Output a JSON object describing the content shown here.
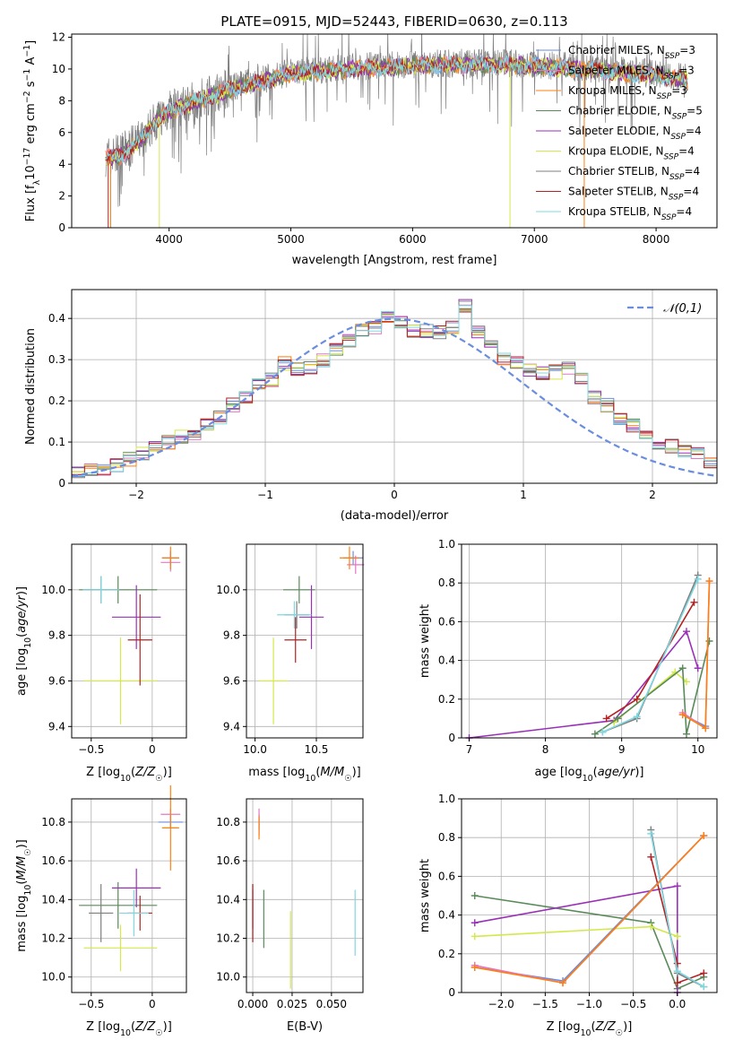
{
  "colors": {
    "chabrier_miles": "#6a8ddf",
    "salpeter_miles": "#e377c2",
    "kroupa_miles": "#ff7f0e",
    "chabrier_elodie": "#5a8a5a",
    "salpeter_elodie": "#9a2fb8",
    "kroupa_elodie": "#d4e84a",
    "chabrier_stelib": "#7f7f7f",
    "salpeter_stelib": "#b22222",
    "kroupa_stelib": "#7fd8e0",
    "gaussian": "#6a8ddf",
    "grid": "#b0b0b0"
  },
  "chart_data": [
    {
      "id": "spectrum",
      "type": "line",
      "title": "PLATE=0915, MJD=52443, FIBERID=0630, z=0.113",
      "xlabel": "wavelength [Angstrom, rest frame]",
      "ylabel": "Flux [f_λ10^-17 erg cm^-2 s^-1 A^-1]",
      "xlim": [
        3200,
        8500
      ],
      "ylim": [
        0,
        12.2
      ],
      "xticks": [
        4000,
        5000,
        6000,
        7000,
        8000
      ],
      "yticks": [
        0,
        2,
        4,
        6,
        8,
        10,
        12
      ],
      "grid": false,
      "legend_position": "right",
      "legend": [
        {
          "main": "Chabrier MILES, N",
          "sub": "SSP",
          "tail": "=3",
          "color_key": "chabrier_miles"
        },
        {
          "main": "Salpeter MILES, N",
          "sub": "SSP",
          "tail": "=3",
          "color_key": "salpeter_miles"
        },
        {
          "main": "Kroupa MILES, N",
          "sub": "SSP",
          "tail": "=3",
          "color_key": "kroupa_miles"
        },
        {
          "main": "Chabrier ELODIE, N",
          "sub": "SSP",
          "tail": "=5",
          "color_key": "chabrier_elodie"
        },
        {
          "main": "Salpeter ELODIE, N",
          "sub": "SSP",
          "tail": "=4",
          "color_key": "salpeter_elodie"
        },
        {
          "main": "Kroupa ELODIE, N",
          "sub": "SSP",
          "tail": "=4",
          "color_key": "kroupa_elodie"
        },
        {
          "main": "Chabrier STELIB, N",
          "sub": "SSP",
          "tail": "=4",
          "color_key": "chabrier_stelib"
        },
        {
          "main": "Salpeter STELIB, N",
          "sub": "SSP",
          "tail": "=4",
          "color_key": "salpeter_stelib"
        },
        {
          "main": "Kroupa STELIB, N",
          "sub": "SSP",
          "tail": "=4",
          "color_key": "kroupa_stelib"
        }
      ],
      "continuum": [
        [
          3480,
          4.5
        ],
        [
          3600,
          4.6
        ],
        [
          3800,
          5.8
        ],
        [
          3900,
          6.9
        ],
        [
          4000,
          7.4
        ],
        [
          4200,
          8.0
        ],
        [
          4500,
          8.8
        ],
        [
          4800,
          9.4
        ],
        [
          5000,
          9.8
        ],
        [
          5500,
          10.1
        ],
        [
          6000,
          10.3
        ],
        [
          6500,
          10.4
        ],
        [
          7000,
          10.3
        ],
        [
          7500,
          10.0
        ],
        [
          8000,
          9.7
        ],
        [
          8260,
          9.4
        ]
      ]
    },
    {
      "id": "residuals",
      "type": "histogram",
      "xlabel": "(data-model)/error",
      "ylabel": "Normed distribution",
      "xlim": [
        -2.5,
        2.5
      ],
      "ylim": [
        0,
        0.47
      ],
      "xticks": [
        -2,
        -1,
        0,
        1,
        2
      ],
      "yticks": [
        0.0,
        0.1,
        0.2,
        0.3,
        0.4
      ],
      "grid": true,
      "legend_position": "top-right",
      "legend_label": "𝒩(0,1)",
      "bin_width": 0.1,
      "approx_hist_values": [
        0.028,
        0.03,
        0.034,
        0.044,
        0.058,
        0.072,
        0.086,
        0.1,
        0.112,
        0.118,
        0.14,
        0.16,
        0.19,
        0.21,
        0.24,
        0.25,
        0.29,
        0.275,
        0.28,
        0.3,
        0.325,
        0.345,
        0.37,
        0.38,
        0.4,
        0.39,
        0.37,
        0.37,
        0.365,
        0.38,
        0.43,
        0.37,
        0.34,
        0.3,
        0.29,
        0.275,
        0.265,
        0.27,
        0.28,
        0.25,
        0.21,
        0.19,
        0.16,
        0.14,
        0.12,
        0.1,
        0.09,
        0.08,
        0.07,
        0.05
      ]
    },
    {
      "id": "age-vs-Z",
      "type": "scatter",
      "xlabel": "Z [log10(Z/Z☉)]",
      "ylabel": "age [log10(age/yr)]",
      "xlim": [
        -0.66,
        0.28
      ],
      "ylim": [
        9.35,
        10.2
      ],
      "xticks": [
        -0.5,
        0.0
      ],
      "yticks": [
        9.4,
        9.6,
        9.8,
        10.0
      ],
      "grid": true,
      "points": [
        {
          "key": "chabrier_miles",
          "x": 0.15,
          "xerr": 0.07,
          "y": 10.14,
          "yerr": 0.03
        },
        {
          "key": "salpeter_miles",
          "x": 0.15,
          "xerr": 0.08,
          "y": 10.12,
          "yerr": 0.04
        },
        {
          "key": "kroupa_miles",
          "x": 0.15,
          "xerr": 0.07,
          "y": 10.14,
          "yerr": 0.05
        },
        {
          "key": "chabrier_elodie",
          "x": -0.28,
          "xerr": 0.32,
          "y": 10.0,
          "yerr": 0.06
        },
        {
          "key": "salpeter_elodie",
          "x": -0.13,
          "xerr": 0.2,
          "y": 9.88,
          "yerr": 0.14
        },
        {
          "key": "kroupa_elodie",
          "x": -0.26,
          "xerr": 0.3,
          "y": 9.6,
          "yerr": 0.19
        },
        {
          "key": "chabrier_stelib",
          "x": -0.42,
          "xerr": 0.15,
          "y": 10.0,
          "yerr": 0.06
        },
        {
          "key": "salpeter_stelib",
          "x": -0.1,
          "xerr": 0.1,
          "y": 9.78,
          "yerr": 0.2
        },
        {
          "key": "kroupa_stelib",
          "x": -0.42,
          "xerr": 0.15,
          "y": 10.0,
          "yerr": 0.06
        }
      ]
    },
    {
      "id": "age-vs-mass",
      "type": "scatter",
      "xlabel": "mass [log10(M/M☉)]",
      "ylabel": "",
      "xlim": [
        9.93,
        10.88
      ],
      "ylim": [
        9.35,
        10.2
      ],
      "xticks": [
        10.0,
        10.5
      ],
      "yticks": [
        9.4,
        9.6,
        9.8,
        10.0
      ],
      "grid": true,
      "points": [
        {
          "key": "chabrier_miles",
          "x": 10.8,
          "xerr": 0.08,
          "y": 10.14,
          "yerr": 0.03
        },
        {
          "key": "salpeter_miles",
          "x": 10.82,
          "xerr": 0.07,
          "y": 10.11,
          "yerr": 0.04
        },
        {
          "key": "kroupa_miles",
          "x": 10.77,
          "xerr": 0.08,
          "y": 10.14,
          "yerr": 0.05
        },
        {
          "key": "chabrier_elodie",
          "x": 10.36,
          "xerr": 0.13,
          "y": 10.0,
          "yerr": 0.06
        },
        {
          "key": "salpeter_elodie",
          "x": 10.46,
          "xerr": 0.1,
          "y": 9.88,
          "yerr": 0.14
        },
        {
          "key": "kroupa_elodie",
          "x": 10.15,
          "xerr": 0.12,
          "y": 9.6,
          "yerr": 0.19
        },
        {
          "key": "chabrier_stelib",
          "x": 10.34,
          "xerr": 0.1,
          "y": 9.89,
          "yerr": 0.06
        },
        {
          "key": "salpeter_stelib",
          "x": 10.33,
          "xerr": 0.09,
          "y": 9.78,
          "yerr": 0.1
        },
        {
          "key": "kroupa_stelib",
          "x": 10.32,
          "xerr": 0.14,
          "y": 9.89,
          "yerr": 0.06
        }
      ]
    },
    {
      "id": "weight-vs-age",
      "type": "line",
      "xlabel": "age [log10(age/yr)]",
      "ylabel": "mass weight",
      "xlim": [
        6.9,
        10.25
      ],
      "ylim": [
        0,
        1
      ],
      "xticks": [
        7,
        8,
        9,
        10
      ],
      "yticks": [
        0.0,
        0.2,
        0.4,
        0.6,
        0.8,
        1.0
      ],
      "grid": true,
      "series": [
        {
          "key": "salpeter_elodie",
          "x": [
            7.0,
            8.9,
            9.85,
            10.0
          ],
          "y": [
            0.0,
            0.09,
            0.55,
            0.36
          ]
        },
        {
          "key": "kroupa_elodie",
          "x": [
            8.9,
            9.7,
            9.85
          ],
          "y": [
            0.08,
            0.34,
            0.29
          ]
        },
        {
          "key": "chabrier_elodie",
          "x": [
            8.65,
            8.95,
            9.8,
            9.85,
            10.15
          ],
          "y": [
            0.02,
            0.1,
            0.36,
            0.02,
            0.5
          ]
        },
        {
          "key": "salpeter_stelib",
          "x": [
            8.8,
            9.2,
            9.95
          ],
          "y": [
            0.1,
            0.2,
            0.7
          ]
        },
        {
          "key": "chabrier_stelib",
          "x": [
            8.75,
            9.2,
            10.0
          ],
          "y": [
            0.03,
            0.1,
            0.84
          ]
        },
        {
          "key": "kroupa_stelib",
          "x": [
            8.75,
            9.2,
            10.0
          ],
          "y": [
            0.03,
            0.11,
            0.82
          ]
        },
        {
          "key": "chabrier_miles",
          "x": [
            9.8,
            10.1
          ],
          "y": [
            0.12,
            0.06
          ]
        },
        {
          "key": "salpeter_miles",
          "x": [
            9.8,
            10.1,
            10.15
          ],
          "y": [
            0.13,
            0.05,
            0.81
          ]
        },
        {
          "key": "kroupa_miles",
          "x": [
            9.8,
            10.1,
            10.15
          ],
          "y": [
            0.12,
            0.05,
            0.81
          ]
        }
      ]
    },
    {
      "id": "mass-vs-Z",
      "type": "scatter",
      "xlabel": "Z [log10(Z/Z☉)]",
      "ylabel": "mass [log10(M/M☉)]",
      "xlim": [
        -0.66,
        0.28
      ],
      "ylim": [
        9.92,
        10.92
      ],
      "xticks": [
        -0.5,
        0.0
      ],
      "yticks": [
        10.0,
        10.2,
        10.4,
        10.6,
        10.8
      ],
      "grid": true,
      "points": [
        {
          "key": "chabrier_miles",
          "x": 0.15,
          "xerr": 0.1,
          "y": 10.8,
          "yerr": 0.03
        },
        {
          "key": "salpeter_miles",
          "x": 0.15,
          "xerr": 0.08,
          "y": 10.84,
          "yerr": 0.03
        },
        {
          "key": "kroupa_miles",
          "x": 0.15,
          "xerr": 0.07,
          "y": 10.77,
          "yerr": 0.22
        },
        {
          "key": "chabrier_elodie",
          "x": -0.28,
          "xerr": 0.32,
          "y": 10.37,
          "yerr": 0.12
        },
        {
          "key": "salpeter_elodie",
          "x": -0.13,
          "xerr": 0.2,
          "y": 10.46,
          "yerr": 0.1
        },
        {
          "key": "kroupa_elodie",
          "x": -0.26,
          "xerr": 0.3,
          "y": 10.15,
          "yerr": 0.12
        },
        {
          "key": "chabrier_stelib",
          "x": -0.42,
          "xerr": 0.1,
          "y": 10.33,
          "yerr": 0.15
        },
        {
          "key": "salpeter_stelib",
          "x": -0.1,
          "xerr": 0.1,
          "y": 10.33,
          "yerr": 0.09
        },
        {
          "key": "kroupa_stelib",
          "x": -0.15,
          "xerr": 0.12,
          "y": 10.33,
          "yerr": 0.12
        }
      ]
    },
    {
      "id": "mass-vs-ebv",
      "type": "scatter",
      "xlabel": "E(B-V)",
      "ylabel": "",
      "xlim": [
        -0.004,
        0.07
      ],
      "ylim": [
        9.92,
        10.92
      ],
      "xticks": [
        0.0,
        0.025,
        0.05
      ],
      "tick_labels": [
        "0.000",
        "0.025",
        "0.050"
      ],
      "yticks": [
        10.0,
        10.2,
        10.4,
        10.6,
        10.8
      ],
      "grid": true,
      "points": [
        {
          "key": "chabrier_miles",
          "x": 0.004,
          "y": 10.8,
          "yerr": 0.04
        },
        {
          "key": "salpeter_miles",
          "x": 0.004,
          "y": 10.8,
          "yerr": 0.07
        },
        {
          "key": "kroupa_miles",
          "x": 0.004,
          "y": 10.77,
          "yerr": 0.06
        },
        {
          "key": "chabrier_elodie",
          "x": 0.007,
          "y": 10.3,
          "yerr": 0.15
        },
        {
          "key": "salpeter_elodie",
          "x": 0.0,
          "y": 10.35,
          "yerr": 0.1
        },
        {
          "key": "kroupa_elodie",
          "x": 0.024,
          "y": 10.14,
          "yerr": 0.2
        },
        {
          "key": "chabrier_stelib",
          "x": 0.0,
          "y": 10.33,
          "yerr": 0.15
        },
        {
          "key": "salpeter_stelib",
          "x": 0.0,
          "y": 10.33,
          "yerr": 0.15
        },
        {
          "key": "kroupa_stelib",
          "x": 0.065,
          "y": 10.28,
          "yerr": 0.17
        }
      ]
    },
    {
      "id": "weight-vs-Z",
      "type": "line",
      "xlabel": "Z [log10(Z/Z☉)]",
      "ylabel": "mass weight",
      "xlim": [
        -2.45,
        0.45
      ],
      "ylim": [
        0,
        1
      ],
      "xticks": [
        -2.0,
        -1.5,
        -1.0,
        -0.5,
        0.0
      ],
      "tick_labels": [
        "−2.0",
        "−1.5",
        "−1.0",
        "−0.5",
        "0.0"
      ],
      "yticks": [
        0.0,
        0.2,
        0.4,
        0.6,
        0.8,
        1.0
      ],
      "grid": true,
      "series": [
        {
          "key": "chabrier_elodie",
          "x": [
            -2.3,
            -0.3,
            0.0,
            0.3
          ],
          "y": [
            0.5,
            0.36,
            0.02,
            0.08
          ]
        },
        {
          "key": "salpeter_elodie",
          "x": [
            -2.3,
            0.0,
            0.0
          ],
          "y": [
            0.36,
            0.55,
            0.0
          ]
        },
        {
          "key": "kroupa_elodie",
          "x": [
            -2.3,
            -0.3,
            0.0
          ],
          "y": [
            0.29,
            0.34,
            0.29
          ]
        },
        {
          "key": "salpeter_stelib",
          "x": [
            -0.3,
            0.0,
            0.0,
            0.3
          ],
          "y": [
            0.7,
            0.15,
            0.05,
            0.1
          ]
        },
        {
          "key": "chabrier_stelib",
          "x": [
            -0.3,
            0.0,
            0.3
          ],
          "y": [
            0.84,
            0.1,
            0.03
          ]
        },
        {
          "key": "kroupa_stelib",
          "x": [
            -0.3,
            0.0,
            0.3
          ],
          "y": [
            0.82,
            0.11,
            0.03
          ]
        },
        {
          "key": "chabrier_miles",
          "x": [
            -2.3,
            -1.3,
            0.3
          ],
          "y": [
            0.13,
            0.06,
            0.81
          ]
        },
        {
          "key": "salpeter_miles",
          "x": [
            -2.3,
            -1.3,
            0.3
          ],
          "y": [
            0.14,
            0.05,
            0.81
          ]
        },
        {
          "key": "kroupa_miles",
          "x": [
            -2.3,
            -1.3,
            0.3
          ],
          "y": [
            0.13,
            0.05,
            0.81
          ]
        }
      ]
    }
  ]
}
